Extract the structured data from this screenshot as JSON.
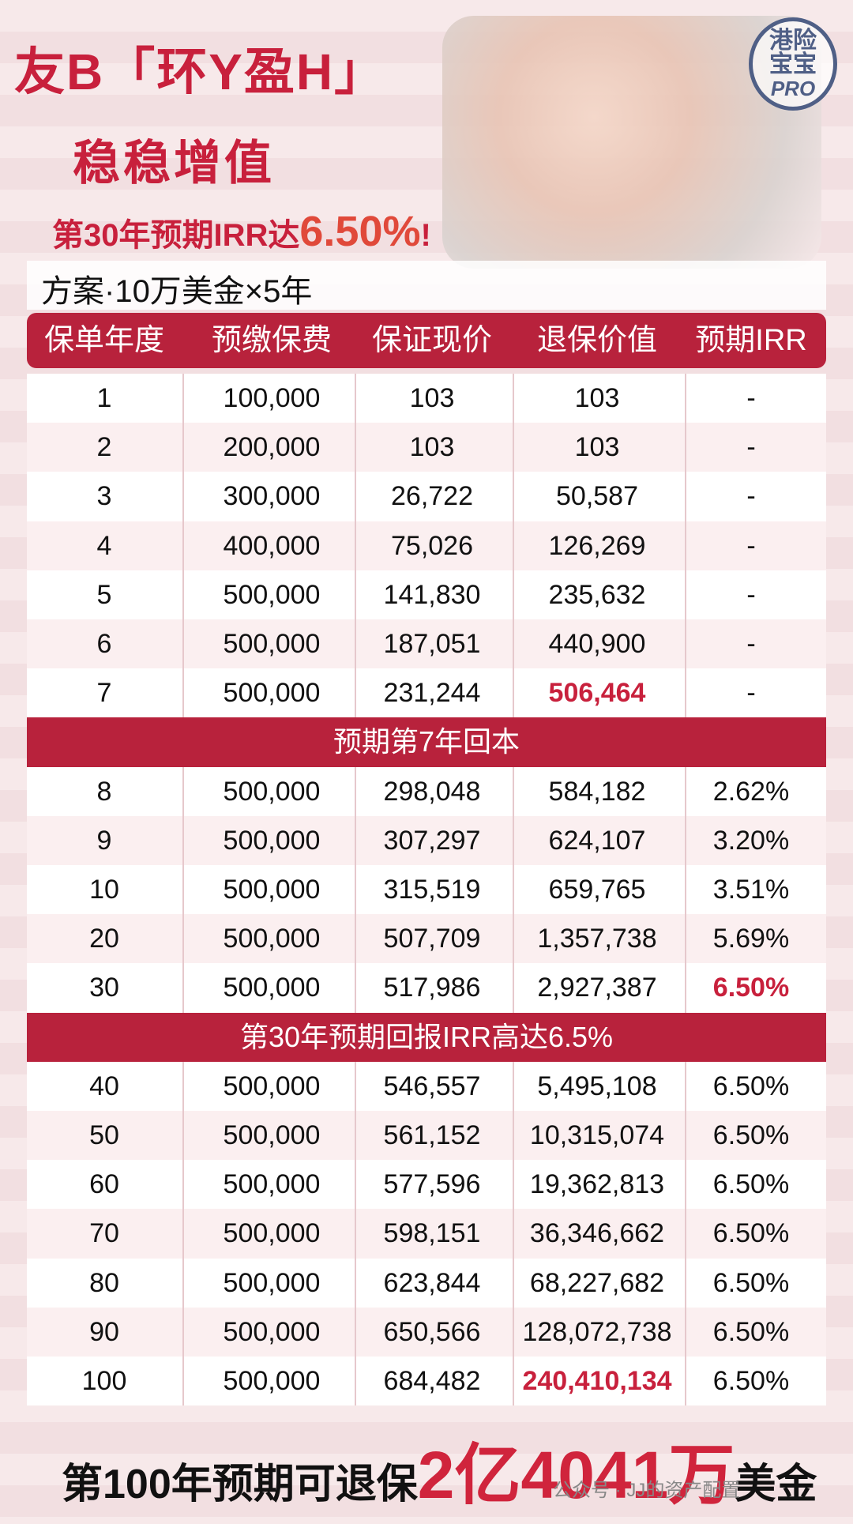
{
  "header": {
    "title": "友B「环Y盈H」",
    "subtitle": "稳稳增值",
    "highlight": [
      "第30年预期IRR达",
      "6.50%",
      "!"
    ]
  },
  "logo": [
    "港险",
    "宝宝",
    "PRO"
  ],
  "plan": "方案·10万美金×5年",
  "table": {
    "columns": [
      "保单年度",
      "预缴保费",
      "保证现价",
      "退保价值",
      "预期IRR"
    ],
    "body": [
      {
        "cells": [
          "1",
          "100,000",
          "103",
          "103",
          "-"
        ]
      },
      {
        "cells": [
          "2",
          "200,000",
          "103",
          "103",
          "-"
        ]
      },
      {
        "cells": [
          "3",
          "300,000",
          "26,722",
          "50,587",
          "-"
        ]
      },
      {
        "cells": [
          "4",
          "400,000",
          "75,026",
          "126,269",
          "-"
        ]
      },
      {
        "cells": [
          "5",
          "500,000",
          "141,830",
          "235,632",
          "-"
        ]
      },
      {
        "cells": [
          "6",
          "500,000",
          "187,051",
          "440,900",
          "-"
        ]
      },
      {
        "cells": [
          "7",
          "500,000",
          "231,244",
          "506,464",
          "-"
        ]
      },
      {
        "banner": "预期第7年回本"
      },
      {
        "cells": [
          "8",
          "500,000",
          "298,048",
          "584,182",
          "2.62%"
        ]
      },
      {
        "cells": [
          "9",
          "500,000",
          "307,297",
          "624,107",
          "3.20%"
        ]
      },
      {
        "cells": [
          "10",
          "500,000",
          "315,519",
          "659,765",
          "3.51%"
        ]
      },
      {
        "cells": [
          "20",
          "500,000",
          "507,709",
          "1,357,738",
          "5.69%"
        ]
      },
      {
        "cells": [
          "30",
          "500,000",
          "517,986",
          "2,927,387",
          "6.50%"
        ]
      },
      {
        "banner": "第30年预期回报IRR高达6.5%"
      },
      {
        "cells": [
          "40",
          "500,000",
          "546,557",
          "5,495,108",
          "6.50%"
        ]
      },
      {
        "cells": [
          "50",
          "500,000",
          "561,152",
          "10,315,074",
          "6.50%"
        ]
      },
      {
        "cells": [
          "60",
          "500,000",
          "577,596",
          "19,362,813",
          "6.50%"
        ]
      },
      {
        "cells": [
          "70",
          "500,000",
          "598,151",
          "36,346,662",
          "6.50%"
        ]
      },
      {
        "cells": [
          "80",
          "500,000",
          "623,844",
          "68,227,682",
          "6.50%"
        ]
      },
      {
        "cells": [
          "90",
          "500,000",
          "650,566",
          "128,072,738",
          "6.50%"
        ]
      },
      {
        "cells": [
          "100",
          "500,000",
          "684,482",
          "240,410,134",
          "6.50%"
        ]
      }
    ]
  },
  "footer": [
    "第100年预期可退保",
    "2亿4041万",
    "美金"
  ],
  "watermark": "公众号 · JJ的资产配置"
}
